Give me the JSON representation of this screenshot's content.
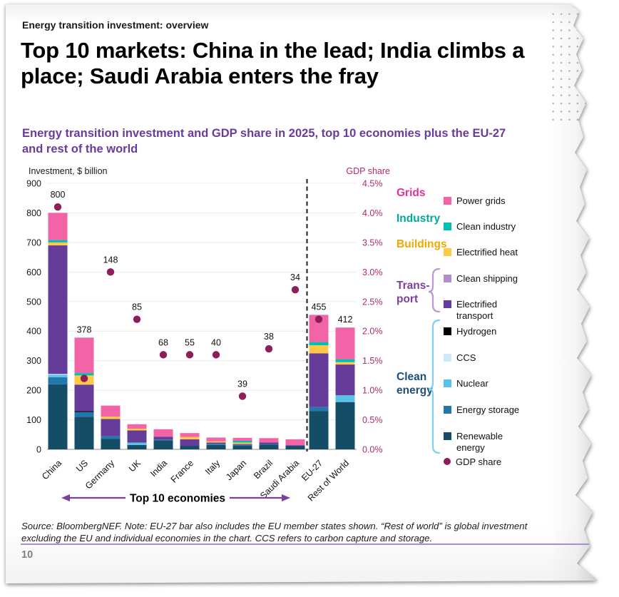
{
  "page": {
    "eyebrow": "Energy transition investment: overview",
    "title": "Top 10 markets: China in the lead; India climbs a place; Saudi Arabia enters the fray",
    "subtitle": "Energy transition investment and GDP share in 2025, top 10 economies plus the EU-27 and rest of the world",
    "source_note": "Source: BloombergNEF. Note: EU-27 bar also includes the EU member states shown. “Rest of world” is global investment excluding the EU and individual economies in the chart. CCS refers to carbon capture and storage.",
    "page_number": "10"
  },
  "chart_data": {
    "type": "bar",
    "stacked": true,
    "categories": [
      "China",
      "US",
      "Germany",
      "UK",
      "India",
      "France",
      "Italy",
      "Japan",
      "Brazil",
      "Saudi Arabia",
      "EU-27",
      "Rest of World"
    ],
    "bar_total_labels": [
      800,
      378,
      148,
      85,
      68,
      55,
      40,
      39,
      38,
      34,
      455,
      412
    ],
    "series": [
      {
        "name": "Renewable energy",
        "color": "#154d67",
        "values": [
          220,
          110,
          35,
          15,
          30,
          12,
          15,
          12,
          16,
          13,
          130,
          160
        ]
      },
      {
        "name": "Energy storage",
        "color": "#2277ad",
        "values": [
          24,
          16,
          9,
          0,
          3,
          0,
          4,
          3,
          2,
          0,
          13,
          0
        ]
      },
      {
        "name": "Nuclear",
        "color": "#5bc2e7",
        "values": [
          8,
          0,
          0,
          8,
          0,
          0,
          0,
          0,
          0,
          0,
          0,
          23
        ]
      },
      {
        "name": "CCS",
        "color": "#cfe9f7",
        "values": [
          3,
          0,
          0,
          0,
          0,
          0,
          0,
          0,
          0,
          0,
          0,
          0
        ]
      },
      {
        "name": "Hydrogen",
        "color": "#000000",
        "values": [
          0,
          3,
          0,
          0,
          0,
          0,
          0,
          0,
          0,
          0,
          0,
          0
        ]
      },
      {
        "name": "Electrified transport",
        "color": "#653c9a",
        "values": [
          435,
          90,
          59,
          41,
          10,
          22,
          4,
          3,
          5,
          1,
          182,
          104
        ]
      },
      {
        "name": "Clean shipping",
        "color": "#b18fcf",
        "values": [
          0,
          0,
          0,
          0,
          0,
          0,
          0,
          0,
          0,
          0,
          0,
          0
        ]
      },
      {
        "name": "Electrified heat",
        "color": "#ffc845",
        "values": [
          10,
          31,
          8,
          6,
          0,
          8,
          4,
          5,
          0,
          0,
          27,
          8
        ]
      },
      {
        "name": "Clean industry",
        "color": "#00bfb3",
        "values": [
          8,
          8,
          0,
          0,
          0,
          0,
          0,
          6,
          0,
          0,
          11,
          10
        ]
      },
      {
        "name": "Power grids",
        "color": "#f264a6",
        "values": [
          92,
          120,
          37,
          15,
          25,
          13,
          13,
          10,
          15,
          20,
          92,
          107
        ]
      }
    ],
    "gdp_share_percent": [
      4.1,
      1.2,
      3.0,
      2.2,
      1.6,
      1.6,
      1.6,
      0.9,
      1.7,
      2.7,
      2.2,
      null
    ],
    "gdp_dot_color": "#8e1d5c",
    "left_axis": {
      "title": "Investment, $ billion",
      "min": 0,
      "max": 900,
      "step": 100
    },
    "right_axis": {
      "title": "GDP share",
      "min": 0,
      "max": 4.5,
      "step": 0.5,
      "suffix": "%",
      "color": "#ad2a6d"
    },
    "separator_after_category": "Saudi Arabia",
    "group_annotation": {
      "text": "Top 10 economies",
      "covers": "China through Saudi Arabia",
      "arrow_color": "#7b3f9e"
    },
    "grid": true,
    "legend_position": "right"
  },
  "legend": {
    "groups": [
      {
        "label": "Grids",
        "label_color": "#ea2f93",
        "items": [
          {
            "label": "Power grids",
            "color": "#f264a6"
          }
        ]
      },
      {
        "label": "Industry",
        "label_color": "#00a79d",
        "items": [
          {
            "label": "Clean industry",
            "color": "#00bfb3"
          }
        ]
      },
      {
        "label": "Buildings",
        "label_color": "#f0a800",
        "items": [
          {
            "label": "Electrified heat",
            "color": "#ffc845"
          }
        ]
      },
      {
        "label": "Trans-\nport",
        "label_color": "#7b3f9e",
        "bracket_color": "#b996d6",
        "items": [
          {
            "label": "Clean shipping",
            "color": "#b18fcf"
          },
          {
            "label": "Electrified\ntransport",
            "color": "#653c9a"
          }
        ]
      },
      {
        "label": "Clean\nenergy",
        "label_color": "#1e4e79",
        "bracket_color": "#7fd0f0",
        "items": [
          {
            "label": "Hydrogen",
            "color": "#000000"
          },
          {
            "label": "CCS",
            "color": "#cfe9f7"
          },
          {
            "label": "Nuclear",
            "color": "#5bc2e7"
          },
          {
            "label": "Energy storage",
            "color": "#2277ad"
          },
          {
            "label": "Renewable\nenergy",
            "color": "#154d67"
          }
        ]
      }
    ],
    "gdp_item": {
      "label": "GDP share",
      "color": "#8e1d5c"
    }
  }
}
